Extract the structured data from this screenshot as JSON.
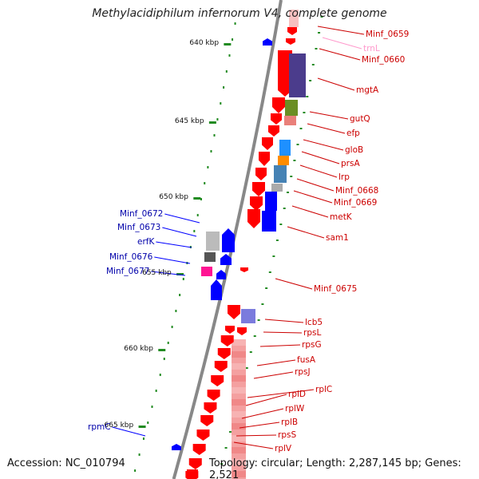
{
  "title": "Methylacidiphilum infernorum V4, complete genome",
  "accession": "Accession: NC_010794",
  "info": "Topology: circular; Length: 2,287,145 bp; Genes: 2,521",
  "colors": {
    "forward": "#ff0000",
    "forward_light": "#f08080",
    "reverse": "#0000ff",
    "backbone": "#888888",
    "tick": "#228b22",
    "label_forward": "#cc0000",
    "label_reverse": "#0000aa",
    "label_rna": "#ff99cc"
  },
  "ticks": [
    "640 kbp",
    "645 kbp",
    "650 kbp",
    "655 kbp",
    "660 kbp",
    "665 kbp"
  ],
  "labels_right": [
    "Minf_0659",
    "trnL",
    "Minf_0660",
    "mgtA",
    "gutQ",
    "efp",
    "gloB",
    "prsA",
    "lrp",
    "Minf_0668",
    "Minf_0669",
    "metK",
    "sam1",
    "Minf_0675",
    "lcb5",
    "rpsL",
    "rpsG",
    "fusA",
    "rpsJ",
    "rplC",
    "rplD",
    "rplW",
    "rplB",
    "rpsS",
    "rplV"
  ],
  "labels_left": [
    "Minf_0672",
    "Minf_0673",
    "erfK",
    "Minf_0676",
    "Minf_0677",
    "rpmC"
  ]
}
